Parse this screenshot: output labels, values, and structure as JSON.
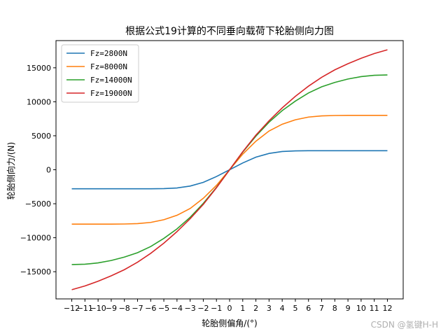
{
  "chart_data": {
    "type": "line",
    "title": "根据公式19计算的不同垂向载荷下轮胎侧向力图",
    "xlabel": "轮胎侧偏角/(°)",
    "ylabel": "轮胎侧向力/(N)",
    "xlim": [
      -13.2,
      13.2
    ],
    "ylim": [
      -19000,
      19000
    ],
    "x_ticks": [
      -12,
      -11,
      -10,
      -9,
      -8,
      -7,
      -6,
      -5,
      -4,
      -3,
      -2,
      -1,
      0,
      1,
      2,
      3,
      4,
      5,
      6,
      7,
      8,
      9,
      10,
      11,
      12
    ],
    "y_ticks": [
      -15000,
      -10000,
      -5000,
      0,
      5000,
      10000,
      15000
    ],
    "grid": false,
    "legend_position": "top-left",
    "x": [
      -12,
      -11,
      -10,
      -9,
      -8,
      -7,
      -6,
      -5,
      -4,
      -3,
      -2,
      -1,
      0,
      1,
      2,
      3,
      4,
      5,
      6,
      7,
      8,
      9,
      10,
      11,
      12
    ],
    "series": [
      {
        "name": "Fz=2800N",
        "color": "#1f77b4",
        "values": [
          -2800,
          -2800,
          -2800,
          -2800,
          -2800,
          -2800,
          -2795,
          -2770,
          -2680,
          -2400,
          -1850,
          -1000,
          0,
          1000,
          1850,
          2400,
          2680,
          2770,
          2795,
          2800,
          2800,
          2800,
          2800,
          2800,
          2800
        ]
      },
      {
        "name": "Fz=8000N",
        "color": "#ff7f0e",
        "values": [
          -8000,
          -8000,
          -8000,
          -8000,
          -7980,
          -7920,
          -7750,
          -7350,
          -6700,
          -5700,
          -4200,
          -2300,
          0,
          2300,
          4200,
          5700,
          6700,
          7350,
          7750,
          7920,
          7980,
          8000,
          8000,
          8000,
          8000
        ]
      },
      {
        "name": "Fz=14000N",
        "color": "#2ca02c",
        "values": [
          -13950,
          -13900,
          -13700,
          -13350,
          -12850,
          -12200,
          -11300,
          -10100,
          -8700,
          -7000,
          -4950,
          -2600,
          0,
          2600,
          4950,
          7000,
          8700,
          10100,
          11300,
          12200,
          12850,
          13350,
          13700,
          13900,
          13950
        ]
      },
      {
        "name": "Fz=19000N",
        "color": "#d62728",
        "values": [
          -17650,
          -17100,
          -16400,
          -15600,
          -14700,
          -13600,
          -12300,
          -10800,
          -9100,
          -7200,
          -5100,
          -2650,
          0,
          2650,
          5100,
          7200,
          9100,
          10800,
          12300,
          13600,
          14700,
          15600,
          16400,
          17100,
          17650
        ]
      }
    ]
  },
  "watermark": "CSDN @氢键H-H"
}
